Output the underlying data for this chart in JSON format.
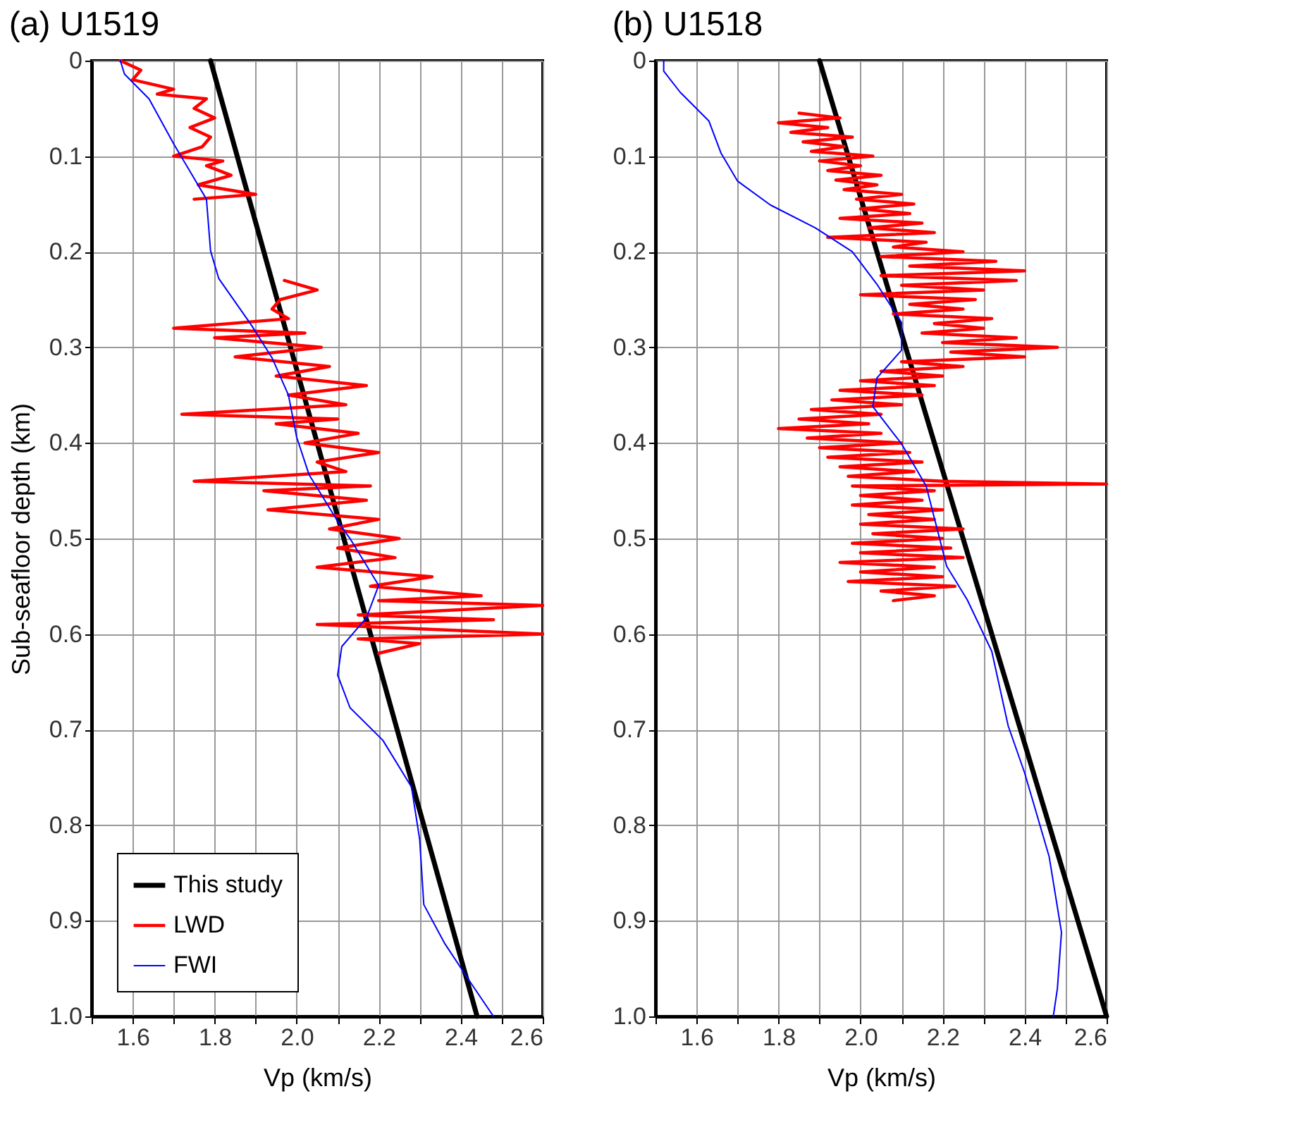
{
  "chart_data": [
    {
      "type": "line",
      "title": "(a) U1519",
      "xlabel": "Vp (km/s)",
      "ylabel": "Sub-seafloor depth (km)",
      "xlim": [
        1.5,
        2.6
      ],
      "ylim": [
        1.0,
        0
      ],
      "xticks": [
        {
          "value": 1.5,
          "label": null
        },
        1.6,
        {
          "value": 1.7,
          "label": null
        },
        1.8,
        {
          "value": 1.9,
          "label": null
        },
        {
          "value": 2.0,
          "label": "2.0"
        },
        {
          "value": 2.1,
          "label": null
        },
        2.2,
        {
          "value": 2.3,
          "label": null
        },
        2.4,
        {
          "value": 2.5,
          "label": null
        },
        2.6
      ],
      "yticks": [
        0,
        0.1,
        0.2,
        0.3,
        0.4,
        0.5,
        0.6,
        0.7,
        0.8,
        0.9,
        {
          "value": 1.0,
          "label": "1.0"
        }
      ],
      "grid": true,
      "legend": "bottom left",
      "series": [
        {
          "name": "This study",
          "color": "#000000",
          "x": [
            1.79,
            2.44
          ],
          "values": [
            0,
            1.0
          ]
        },
        {
          "name": "LWD",
          "color": "#ff0000",
          "x": [
            1.57,
            1.62,
            1.6,
            1.7,
            1.66,
            1.78,
            1.75,
            1.8,
            1.74,
            1.79,
            1.77,
            1.7,
            1.82,
            1.78,
            1.84,
            1.76,
            1.9,
            1.75,
            null,
            1.97,
            2.05,
            1.96,
            1.94,
            1.98,
            1.7,
            2.02,
            1.8,
            2.06,
            1.85,
            2.08,
            1.95,
            2.17,
            1.98,
            2.12,
            1.72,
            2.1,
            1.95,
            2.15,
            2.02,
            2.2,
            2.05,
            2.12,
            1.75,
            2.18,
            1.92,
            2.17,
            1.93,
            2.2,
            2.08,
            2.25,
            2.1,
            2.24,
            2.05,
            2.33,
            2.18,
            2.45,
            2.2,
            2.6,
            2.15,
            2.48,
            2.05,
            2.6,
            2.15,
            2.3,
            2.2
          ],
          "values": [
            0.0,
            0.01,
            0.02,
            0.03,
            0.035,
            0.04,
            0.05,
            0.06,
            0.07,
            0.08,
            0.09,
            0.1,
            0.105,
            0.11,
            0.12,
            0.13,
            0.14,
            0.145,
            null,
            0.23,
            0.24,
            0.25,
            0.26,
            0.27,
            0.28,
            0.285,
            0.29,
            0.3,
            0.31,
            0.32,
            0.33,
            0.34,
            0.35,
            0.36,
            0.37,
            0.375,
            0.38,
            0.39,
            0.4,
            0.41,
            0.42,
            0.43,
            0.44,
            0.445,
            0.45,
            0.46,
            0.47,
            0.48,
            0.49,
            0.5,
            0.51,
            0.52,
            0.53,
            0.54,
            0.55,
            0.56,
            0.565,
            0.57,
            0.58,
            0.585,
            0.59,
            0.6,
            0.605,
            0.61,
            0.62
          ]
        },
        {
          "name": "FWI",
          "color": "#0000ff",
          "x": [
            1.57,
            1.58,
            1.64,
            1.7,
            1.78,
            1.79,
            1.81,
            1.89,
            1.94,
            1.98,
            2.0,
            2.03,
            2.1,
            2.13,
            2.2,
            2.17,
            2.11,
            2.1,
            2.13,
            2.21,
            2.28,
            2.3,
            2.31,
            2.36,
            2.42,
            2.48
          ],
          "values": [
            0,
            0.014,
            0.04,
            0.087,
            0.145,
            0.199,
            0.228,
            0.277,
            0.311,
            0.35,
            0.394,
            0.433,
            0.482,
            0.5,
            0.549,
            0.583,
            0.613,
            0.643,
            0.677,
            0.711,
            0.76,
            0.815,
            0.883,
            0.923,
            0.962,
            1.0
          ]
        }
      ]
    },
    {
      "type": "line",
      "title": "(b) U1518",
      "xlabel": "Vp (km/s)",
      "xlim": [
        1.5,
        2.6
      ],
      "ylim": [
        1.0,
        0
      ],
      "xticks": [
        {
          "value": 1.5,
          "label": null
        },
        1.6,
        {
          "value": 1.7,
          "label": null
        },
        1.8,
        {
          "value": 1.9,
          "label": null
        },
        {
          "value": 2.0,
          "label": "2.0"
        },
        {
          "value": 2.1,
          "label": null
        },
        2.2,
        {
          "value": 2.3,
          "label": null
        },
        2.4,
        {
          "value": 2.5,
          "label": null
        },
        2.6
      ],
      "yticks": [
        0,
        0.1,
        0.2,
        0.3,
        0.4,
        0.5,
        0.6,
        0.7,
        0.8,
        0.9,
        {
          "value": 1.0,
          "label": "1.0"
        }
      ],
      "grid": true,
      "legend": "bottom left",
      "series": [
        {
          "name": "This study",
          "color": "#000000",
          "x": [
            1.9,
            2.6
          ],
          "values": [
            0,
            1.0
          ]
        },
        {
          "name": "LWD",
          "color": "#ff0000",
          "x": [
            1.85,
            1.95,
            1.8,
            1.92,
            1.83,
            1.98,
            1.86,
            1.96,
            1.88,
            2.03,
            1.9,
            2.0,
            1.92,
            2.05,
            1.94,
            2.04,
            1.96,
            2.1,
            1.99,
            2.13,
            2.0,
            2.12,
            1.95,
            2.15,
            2.02,
            2.18,
            1.92,
            2.16,
            2.08,
            2.25,
            2.05,
            2.33,
            2.12,
            2.4,
            2.05,
            2.38,
            2.1,
            2.3,
            2.0,
            2.28,
            2.12,
            2.25,
            2.08,
            2.32,
            2.18,
            2.3,
            2.15,
            2.38,
            2.2,
            2.48,
            2.22,
            2.4,
            2.1,
            2.25,
            2.05,
            2.2,
            2.0,
            2.18,
            1.95,
            2.15,
            1.93,
            2.1,
            1.88,
            2.05,
            1.85,
            2.02,
            1.8,
            2.05,
            1.87,
            2.1,
            1.9,
            2.12,
            1.92,
            2.15,
            1.95,
            2.13,
            1.97,
            2.2,
            2.6,
            1.98,
            2.18,
            2.0,
            2.15,
            1.98,
            2.2,
            2.02,
            2.18,
            2.0,
            2.25,
            2.03,
            2.2,
            1.98,
            2.22,
            2.0,
            2.25,
            1.95,
            2.18,
            2.0,
            2.2,
            1.97,
            2.23,
            2.05,
            2.18,
            2.08
          ],
          "values": [
            0.055,
            0.06,
            0.065,
            0.07,
            0.075,
            0.08,
            0.085,
            0.09,
            0.095,
            0.1,
            0.105,
            0.11,
            0.115,
            0.12,
            0.125,
            0.13,
            0.135,
            0.14,
            0.145,
            0.15,
            0.155,
            0.16,
            0.165,
            0.17,
            0.175,
            0.18,
            0.185,
            0.19,
            0.195,
            0.2,
            0.205,
            0.21,
            0.215,
            0.22,
            0.225,
            0.23,
            0.235,
            0.24,
            0.245,
            0.25,
            0.255,
            0.26,
            0.265,
            0.27,
            0.275,
            0.28,
            0.285,
            0.29,
            0.295,
            0.3,
            0.305,
            0.31,
            0.315,
            0.32,
            0.325,
            0.33,
            0.335,
            0.34,
            0.345,
            0.35,
            0.355,
            0.36,
            0.365,
            0.37,
            0.375,
            0.38,
            0.385,
            0.39,
            0.395,
            0.4,
            0.405,
            0.41,
            0.415,
            0.42,
            0.425,
            0.43,
            0.435,
            0.44,
            0.443,
            0.445,
            0.45,
            0.455,
            0.46,
            0.465,
            0.47,
            0.475,
            0.48,
            0.485,
            0.49,
            0.495,
            0.5,
            0.505,
            0.51,
            0.515,
            0.52,
            0.525,
            0.53,
            0.535,
            0.54,
            0.545,
            0.55,
            0.555,
            0.56,
            0.565
          ]
        },
        {
          "name": "FWI",
          "color": "#0000ff",
          "x": [
            1.52,
            1.52,
            1.56,
            1.63,
            1.66,
            1.7,
            1.78,
            1.89,
            1.98,
            2.04,
            2.1,
            2.1,
            2.04,
            2.03,
            2.1,
            2.16,
            2.21,
            2.26,
            2.32,
            2.36,
            2.4,
            2.46,
            2.49,
            2.48,
            2.47
          ],
          "values": [
            0,
            0.011,
            0.033,
            0.063,
            0.097,
            0.126,
            0.151,
            0.175,
            0.2,
            0.234,
            0.274,
            0.303,
            0.332,
            0.362,
            0.401,
            0.445,
            0.529,
            0.564,
            0.618,
            0.696,
            0.745,
            0.833,
            0.912,
            0.971,
            1.0
          ]
        }
      ]
    }
  ]
}
